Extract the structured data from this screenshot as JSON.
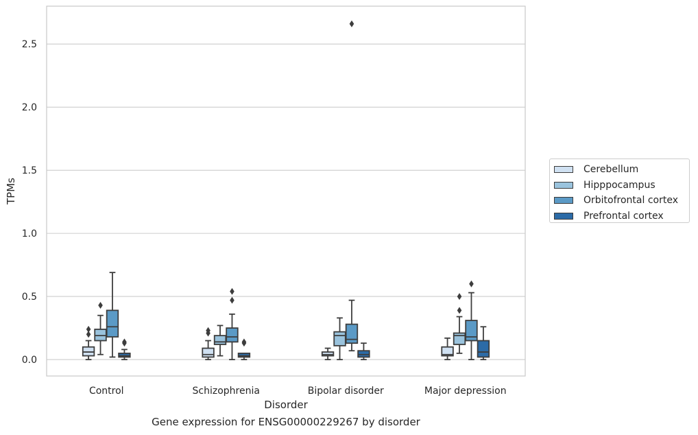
{
  "chart_data": {
    "type": "box",
    "caption": "Gene expression for ENSG00000229267 by disorder",
    "xlabel": "Disorder",
    "ylabel": "TPMs",
    "ylim": [
      -0.13,
      2.8
    ],
    "yticks": [
      "0.0",
      "0.5",
      "1.0",
      "1.5",
      "2.0",
      "2.5"
    ],
    "grid": true,
    "legend_position": "right, outside plot",
    "categories": [
      "Control",
      "Schizophrenia",
      "Bipolar disorder",
      "Major depression"
    ],
    "series": [
      {
        "name": "Cerebellum",
        "color": "#d0e1f2",
        "boxes": [
          {
            "whisker_low": 0.0,
            "q1": 0.03,
            "median": 0.06,
            "q3": 0.1,
            "whisker_high": 0.15,
            "outliers": [
              0.2,
              0.24
            ]
          },
          {
            "whisker_low": 0.0,
            "q1": 0.02,
            "median": 0.04,
            "q3": 0.09,
            "whisker_high": 0.15,
            "outliers": [
              0.21,
              0.23
            ]
          },
          {
            "whisker_low": 0.0,
            "q1": 0.03,
            "median": 0.04,
            "q3": 0.06,
            "whisker_high": 0.09,
            "outliers": []
          },
          {
            "whisker_low": 0.0,
            "q1": 0.03,
            "median": 0.04,
            "q3": 0.1,
            "whisker_high": 0.17,
            "outliers": []
          }
        ]
      },
      {
        "name": "Hipppocampus",
        "color": "#9ac3dd",
        "boxes": [
          {
            "whisker_low": 0.04,
            "q1": 0.15,
            "median": 0.19,
            "q3": 0.24,
            "whisker_high": 0.35,
            "outliers": [
              0.43
            ]
          },
          {
            "whisker_low": 0.03,
            "q1": 0.12,
            "median": 0.14,
            "q3": 0.19,
            "whisker_high": 0.27,
            "outliers": []
          },
          {
            "whisker_low": 0.0,
            "q1": 0.11,
            "median": 0.19,
            "q3": 0.22,
            "whisker_high": 0.33,
            "outliers": []
          },
          {
            "whisker_low": 0.05,
            "q1": 0.12,
            "median": 0.19,
            "q3": 0.21,
            "whisker_high": 0.34,
            "outliers": [
              0.39,
              0.5
            ]
          }
        ]
      },
      {
        "name": "Orbitofrontal cortex",
        "color": "#5b9ac6",
        "boxes": [
          {
            "whisker_low": 0.02,
            "q1": 0.18,
            "median": 0.26,
            "q3": 0.39,
            "whisker_high": 0.69,
            "outliers": []
          },
          {
            "whisker_low": 0.0,
            "q1": 0.14,
            "median": 0.18,
            "q3": 0.25,
            "whisker_high": 0.36,
            "outliers": [
              0.47,
              0.54
            ]
          },
          {
            "whisker_low": 0.07,
            "q1": 0.13,
            "median": 0.16,
            "q3": 0.28,
            "whisker_high": 0.47,
            "outliers": [
              2.66
            ]
          },
          {
            "whisker_low": 0.0,
            "q1": 0.15,
            "median": 0.18,
            "q3": 0.31,
            "whisker_high": 0.53,
            "outliers": [
              0.6
            ]
          }
        ]
      },
      {
        "name": "Prefrontal cortex",
        "color": "#2c6ba7",
        "boxes": [
          {
            "whisker_low": 0.0,
            "q1": 0.02,
            "median": 0.03,
            "q3": 0.05,
            "whisker_high": 0.08,
            "outliers": [
              0.13,
              0.14
            ]
          },
          {
            "whisker_low": 0.0,
            "q1": 0.02,
            "median": 0.03,
            "q3": 0.05,
            "whisker_high": 0.05,
            "outliers": [
              0.13,
              0.14
            ]
          },
          {
            "whisker_low": 0.0,
            "q1": 0.02,
            "median": 0.04,
            "q3": 0.07,
            "whisker_high": 0.13,
            "outliers": []
          },
          {
            "whisker_low": 0.0,
            "q1": 0.02,
            "median": 0.06,
            "q3": 0.15,
            "whisker_high": 0.26,
            "outliers": []
          }
        ]
      }
    ]
  }
}
